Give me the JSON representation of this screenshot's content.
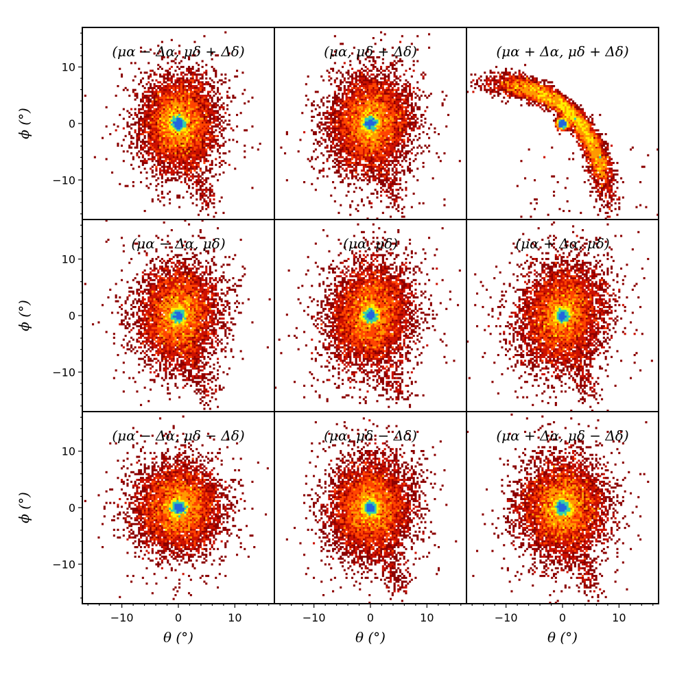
{
  "chart_data": {
    "type": "heatmap",
    "layout": "3x3 grid of 2D density histograms, shared axes",
    "xlabel": "θ (°)",
    "ylabel": "ϕ (°)",
    "xlim": [
      -17,
      17
    ],
    "ylim": [
      -17,
      17
    ],
    "x_ticks": [
      -10,
      0,
      10
    ],
    "y_ticks": [
      -10,
      0,
      10
    ],
    "x_tick_labels": [
      "−10",
      "0",
      "10"
    ],
    "y_tick_labels": [
      "−10",
      "0",
      "10"
    ],
    "colormap": [
      "#8b0000",
      "#cc1100",
      "#ff4400",
      "#ff9900",
      "#ffee00",
      "#33ccaa",
      "#2266dd"
    ],
    "panels": [
      {
        "title": "(μα − Δα, μδ + Δδ)",
        "shape": "blob",
        "center": [
          0,
          0
        ],
        "sigma": [
          3.0,
          3.8
        ],
        "tilt_deg": -5,
        "tail": "lower-right"
      },
      {
        "title": "(μα, μδ + Δδ)",
        "shape": "blob",
        "center": [
          0,
          0
        ],
        "sigma": [
          3.2,
          4.0
        ],
        "tilt_deg": -10,
        "tail": "lower-right"
      },
      {
        "title": "(μα + Δα, μδ + Δδ)",
        "shape": "arc",
        "center": [
          0,
          0
        ],
        "arc_from": [
          -16,
          7
        ],
        "arc_to": [
          8,
          -16
        ],
        "stream_width": 1.2
      },
      {
        "title": "(μα − Δα, μδ)",
        "shape": "blob",
        "center": [
          0,
          0
        ],
        "sigma": [
          3.2,
          4.0
        ],
        "tilt_deg": -5,
        "tail": "lower-right"
      },
      {
        "title": "(μα, μδ)",
        "shape": "blob",
        "center": [
          0,
          0
        ],
        "sigma": [
          3.3,
          4.2
        ],
        "tilt_deg": -12,
        "tail": "lower-right"
      },
      {
        "title": "(μα + Δα, μδ)",
        "shape": "blob",
        "center": [
          0,
          0
        ],
        "sigma": [
          3.4,
          4.2
        ],
        "tilt_deg": -20,
        "tail": "lower-right"
      },
      {
        "title": "(μα − Δα, μδ − Δδ)",
        "shape": "blob",
        "center": [
          0,
          0
        ],
        "sigma": [
          3.4,
          3.6
        ],
        "tilt_deg": 0,
        "tail": "none"
      },
      {
        "title": "(μα, μδ − Δδ)",
        "shape": "blob",
        "center": [
          0,
          0
        ],
        "sigma": [
          3.3,
          4.0
        ],
        "tilt_deg": -8,
        "tail": "lower-right"
      },
      {
        "title": "(μα + Δα, μδ − Δδ)",
        "shape": "blob",
        "center": [
          0,
          0
        ],
        "sigma": [
          3.4,
          3.9
        ],
        "tilt_deg": -10,
        "tail": "lower-right"
      }
    ]
  }
}
